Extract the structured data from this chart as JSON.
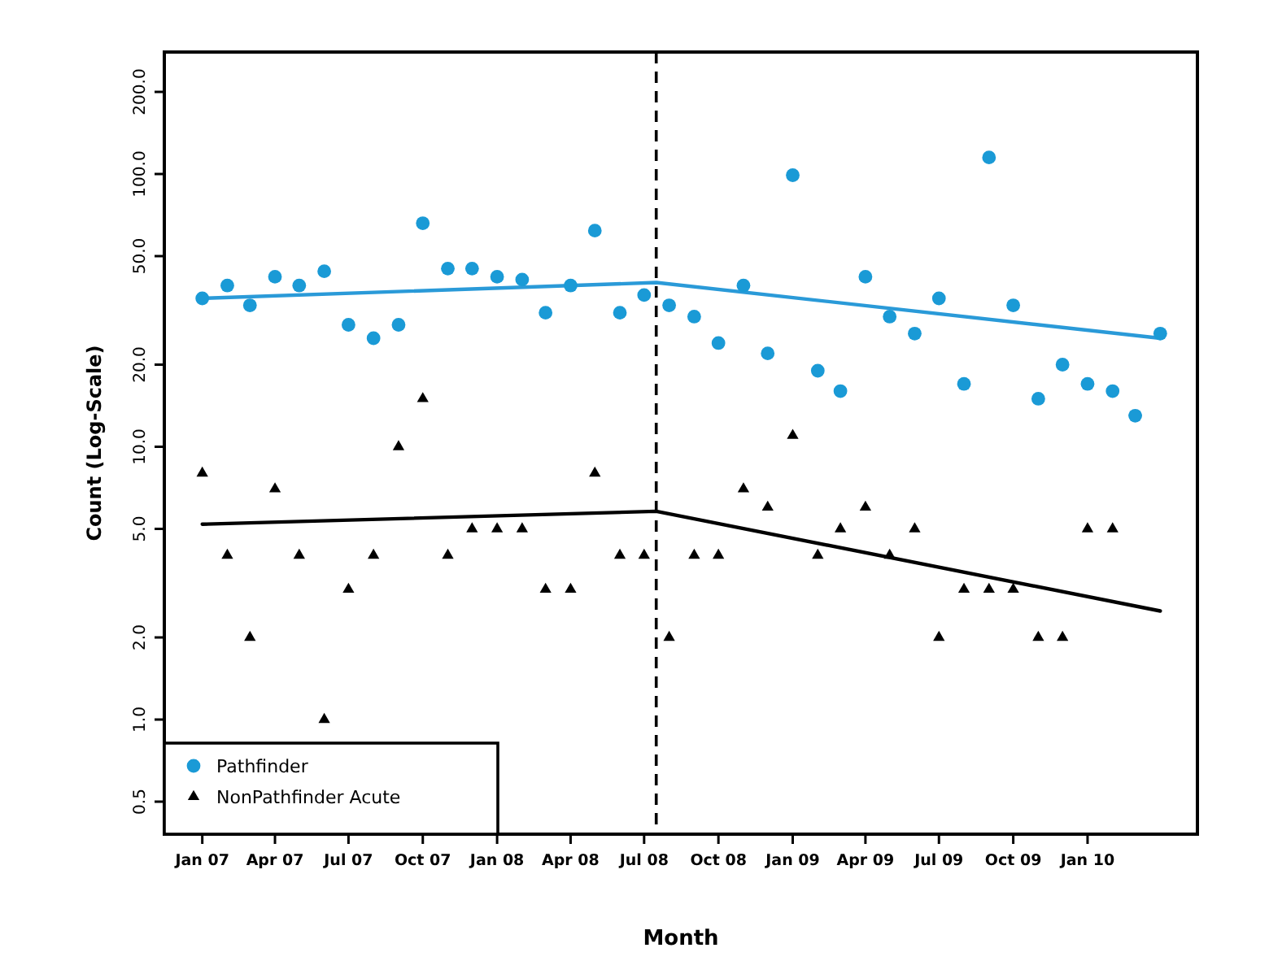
{
  "chart_data": {
    "type": "scatter",
    "xlabel": "Month",
    "ylabel": "Count (Log-Scale)",
    "log": "y",
    "grid": false,
    "legend": "bottom left",
    "x": [
      "2007-01",
      "2007-02",
      "2007-03",
      "2007-04",
      "2007-05",
      "2007-06",
      "2007-07",
      "2007-08",
      "2007-09",
      "2007-10",
      "2007-11",
      "2007-12",
      "2008-01",
      "2008-02",
      "2008-03",
      "2008-04",
      "2008-05",
      "2008-06",
      "2008-07",
      "2008-08",
      "2008-09",
      "2008-10",
      "2008-11",
      "2008-12",
      "2009-01",
      "2009-02",
      "2009-03",
      "2009-04",
      "2009-05",
      "2009-06",
      "2009-07",
      "2009-08",
      "2009-09",
      "2009-10",
      "2009-11",
      "2009-12",
      "2010-01",
      "2010-02",
      "2010-03",
      "2010-04"
    ],
    "xlim": [
      "2006-11-15",
      "2010-05-17"
    ],
    "xticks": [
      {
        "value": "2007-01",
        "label": "Jan 07"
      },
      {
        "value": "2007-04",
        "label": "Apr 07"
      },
      {
        "value": "2007-07",
        "label": "Jul 07"
      },
      {
        "value": "2007-10",
        "label": "Oct 07"
      },
      {
        "value": "2008-01",
        "label": "Jan 08"
      },
      {
        "value": "2008-04",
        "label": "Apr 08"
      },
      {
        "value": "2008-07",
        "label": "Jul 08"
      },
      {
        "value": "2008-10",
        "label": "Oct 08"
      },
      {
        "value": "2009-01",
        "label": "Jan 09"
      },
      {
        "value": "2009-04",
        "label": "Apr 09"
      },
      {
        "value": "2009-07",
        "label": "Jul 09"
      },
      {
        "value": "2009-10",
        "label": "Oct 09"
      },
      {
        "value": "2010-01",
        "label": "Jan 10"
      }
    ],
    "ylim": [
      0.38,
      280
    ],
    "yticks": [
      {
        "value": 0.5,
        "label": "0.5"
      },
      {
        "value": 1,
        "label": "1.0"
      },
      {
        "value": 2,
        "label": "2.0"
      },
      {
        "value": 5,
        "label": "5.0"
      },
      {
        "value": 10,
        "label": "10.0"
      },
      {
        "value": 20,
        "label": "20.0"
      },
      {
        "value": 50,
        "label": "50.0"
      },
      {
        "value": 100,
        "label": "100.0"
      },
      {
        "value": 200,
        "label": "200.0"
      }
    ],
    "ref_lines": [
      {
        "axis": "x",
        "value": "2008-07-16",
        "color": "#000000",
        "line_style": "dashed"
      }
    ],
    "series": [
      {
        "name": "Pathfinder",
        "marker": "circle",
        "color": "#1a9ad6",
        "values": [
          35,
          39,
          33,
          42,
          39,
          44,
          28,
          25,
          28,
          66,
          45,
          45,
          42,
          41,
          31,
          39,
          62,
          31,
          36,
          33,
          30,
          24,
          39,
          22,
          99,
          19,
          16,
          42,
          30,
          26,
          35,
          17,
          115,
          33,
          15,
          20,
          17,
          16,
          13,
          26
        ]
      },
      {
        "name": "NonPathfinder Acute",
        "marker": "triangle",
        "color": "#000000",
        "values": [
          8,
          4,
          2,
          7,
          4,
          1,
          3,
          4,
          10,
          15,
          4,
          5,
          5,
          5,
          3,
          3,
          8,
          4,
          4,
          2,
          4,
          4,
          7,
          6,
          11,
          4,
          5,
          6,
          4,
          5,
          2,
          3,
          3,
          3,
          2,
          2,
          5,
          5,
          null,
          null
        ]
      },
      {
        "type": "line",
        "line_style": "solid",
        "color": "#2a9ad8",
        "x": [
          "2007-01",
          "2008-07-16",
          "2010-04"
        ],
        "values": [
          35,
          40,
          25
        ]
      },
      {
        "type": "line",
        "line_style": "solid",
        "color": "#000000",
        "x": [
          "2007-01",
          "2008-07-16",
          "2010-04"
        ],
        "values": [
          5.2,
          5.8,
          2.5
        ]
      }
    ]
  }
}
